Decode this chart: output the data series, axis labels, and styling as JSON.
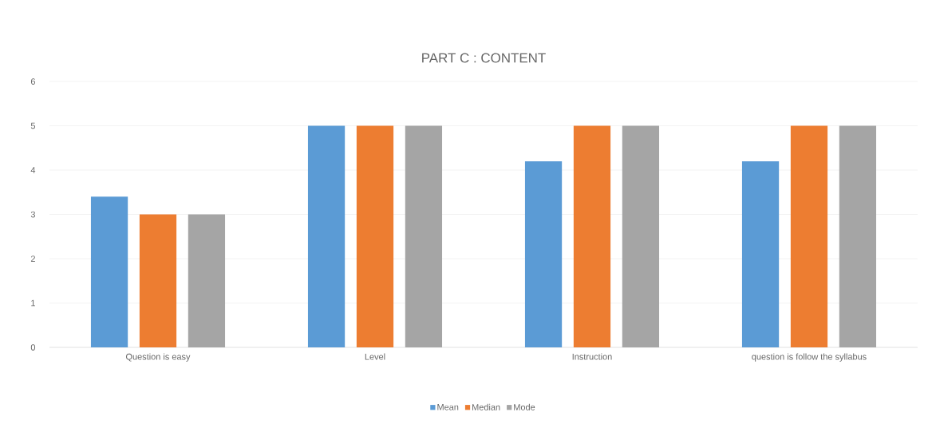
{
  "chart_data": {
    "type": "bar",
    "title": "PART C : CONTENT",
    "categories": [
      "Question is easy",
      "Level",
      "Instruction",
      "question is follow the syllabus"
    ],
    "series": [
      {
        "name": "Mean",
        "color": "#5b9bd5",
        "values": [
          3.4,
          5,
          4.2,
          4.2
        ]
      },
      {
        "name": "Median",
        "color": "#ed7d31",
        "values": [
          3,
          5,
          5,
          5
        ]
      },
      {
        "name": "Mode",
        "color": "#a5a5a5",
        "values": [
          3,
          5,
          5,
          5
        ]
      }
    ],
    "ylim": [
      0,
      6
    ],
    "yticks": [
      0,
      1,
      2,
      3,
      4,
      5,
      6
    ],
    "grid": "y",
    "legend": "bottom"
  }
}
